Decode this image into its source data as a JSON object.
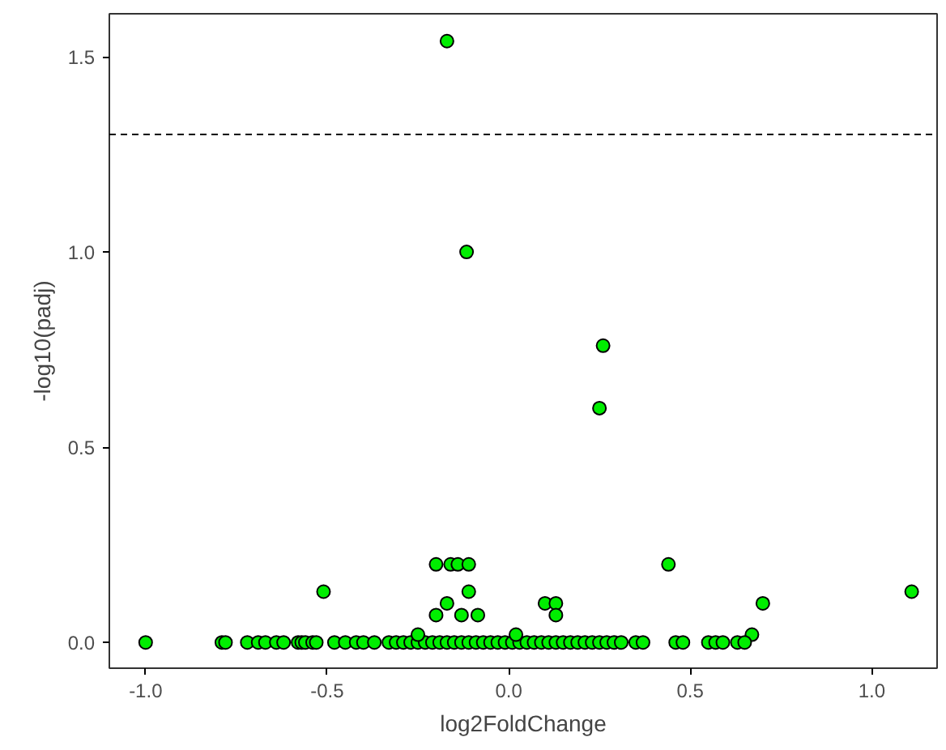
{
  "chart_data": {
    "type": "scatter",
    "xlabel": "log2FoldChange",
    "ylabel": "-log10(padj)",
    "x": [
      -0.17,
      -0.116,
      0.26,
      0.25,
      -1.0,
      -0.79,
      -0.78,
      -0.72,
      -0.69,
      -0.67,
      -0.64,
      -0.62,
      -0.58,
      -0.57,
      -0.56,
      -0.54,
      -0.53,
      -0.51,
      -0.48,
      -0.45,
      -0.42,
      -0.4,
      -0.37,
      -0.33,
      -0.31,
      -0.29,
      -0.27,
      -0.25,
      -0.23,
      -0.21,
      -0.19,
      -0.17,
      -0.15,
      -0.13,
      -0.11,
      -0.09,
      -0.07,
      -0.05,
      -0.03,
      -0.01,
      0.01,
      0.03,
      0.05,
      0.07,
      0.09,
      0.11,
      0.13,
      0.15,
      0.17,
      0.19,
      0.21,
      0.23,
      0.25,
      0.27,
      0.29,
      0.31,
      -0.25,
      -0.2,
      -0.16,
      -0.14,
      -0.11,
      -0.2,
      -0.17,
      -0.13,
      -0.11,
      -0.085,
      0.02,
      0.1,
      0.13,
      0.13,
      0.44,
      0.7,
      1.11,
      0.67,
      0.35,
      0.37,
      0.46,
      0.48,
      0.55,
      0.57,
      0.59,
      0.63,
      0.65
    ],
    "values": [
      1.54,
      1.0,
      0.76,
      0.6,
      0,
      0,
      0,
      0,
      0,
      0,
      0,
      0,
      0,
      0,
      0,
      0,
      0,
      0.13,
      0,
      0,
      0,
      0,
      0,
      0,
      0,
      0,
      0,
      0,
      0,
      0,
      0,
      0,
      0,
      0,
      0,
      0,
      0,
      0,
      0,
      0,
      0,
      0,
      0,
      0,
      0,
      0,
      0,
      0,
      0,
      0,
      0,
      0,
      0,
      0,
      0,
      0,
      0.02,
      0.2,
      0.2,
      0.2,
      0.2,
      0.07,
      0.1,
      0.07,
      0.13,
      0.07,
      0.02,
      0.1,
      0.1,
      0.07,
      0.2,
      0.1,
      0.13,
      0.02,
      0,
      0,
      0,
      0,
      0,
      0,
      0,
      0,
      0
    ],
    "color": "#00ee00",
    "marker": "circle",
    "grid": false,
    "xlim": [
      -1.1,
      1.18
    ],
    "ylim": [
      -0.066,
      1.61
    ],
    "xticks": [
      {
        "value": -1,
        "label": "-1.0"
      },
      {
        "value": -0.5,
        "label": "-0.5"
      },
      {
        "value": 0,
        "label": "0.0"
      },
      {
        "value": 0.5,
        "label": "0.5"
      },
      {
        "value": 1,
        "label": "1.0"
      }
    ],
    "yticks": [
      {
        "value": 0,
        "label": "0.0"
      },
      {
        "value": 0.5,
        "label": "0.5"
      },
      {
        "value": 1,
        "label": "1.0"
      },
      {
        "value": 1.5,
        "label": "1.5"
      }
    ],
    "ref_lines": [
      {
        "axis": "y",
        "value": 1.301,
        "line_style": "dashed"
      }
    ]
  }
}
